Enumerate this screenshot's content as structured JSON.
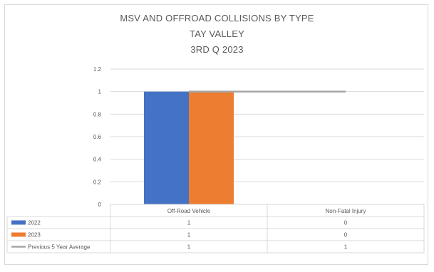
{
  "chart_data": {
    "type": "bar",
    "title": [
      "MSV AND OFFROAD COLLISIONS BY TYPE",
      "TAY VALLEY",
      "3RD Q 2023"
    ],
    "categories": [
      "Off-Road Vehicle",
      "Non-Fatal Injury"
    ],
    "series": [
      {
        "name": "2022",
        "kind": "bar",
        "color": "#4472c4",
        "values": [
          1,
          0
        ]
      },
      {
        "name": "2023",
        "kind": "bar",
        "color": "#ed7d31",
        "values": [
          1,
          0
        ]
      },
      {
        "name": "Previous 5 Year Average",
        "kind": "line",
        "color": "#a5a5a5",
        "values": [
          1,
          1
        ]
      }
    ],
    "y_ticks": [
      "0",
      "0.2",
      "0.4",
      "0.6",
      "0.8",
      "1",
      "1.2"
    ],
    "ylim": [
      0,
      1.2
    ],
    "grid": true,
    "legend": "data-table-below"
  }
}
